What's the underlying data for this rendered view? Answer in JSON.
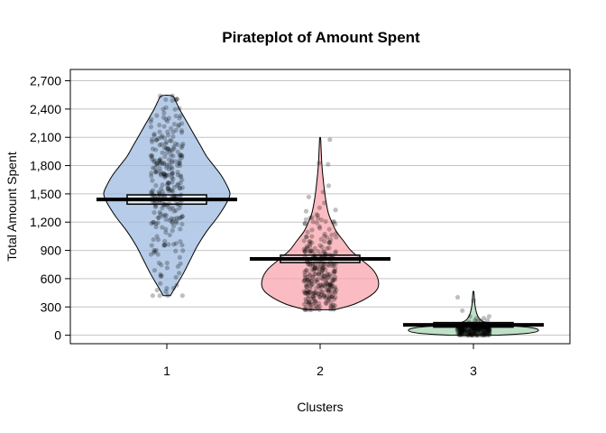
{
  "chart_data": {
    "type": "pirateplot",
    "title": "Pirateplot of Amount Spent",
    "xlabel": "Clusters",
    "ylabel": "Total Amount Spent",
    "ylim": [
      -90,
      2820
    ],
    "yticks": [
      0,
      300,
      600,
      900,
      1200,
      1500,
      1800,
      2100,
      2400,
      2700
    ],
    "ytick_labels": [
      "0",
      "300",
      "600",
      "900",
      "1,200",
      "1,500",
      "1,800",
      "2,100",
      "2,400",
      "2,700"
    ],
    "grid": true,
    "categories": [
      "1",
      "2",
      "3"
    ],
    "groups": [
      {
        "category": "1",
        "color": "#9dbbe0",
        "mean": 1440,
        "inference_band": [
          1410,
          1470
        ],
        "range": [
          420,
          2540
        ],
        "density": [
          [
            420,
            4
          ],
          [
            520,
            10
          ],
          [
            650,
            18
          ],
          [
            800,
            26
          ],
          [
            950,
            34
          ],
          [
            1100,
            44
          ],
          [
            1250,
            56
          ],
          [
            1400,
            66
          ],
          [
            1500,
            70
          ],
          [
            1600,
            66
          ],
          [
            1700,
            60
          ],
          [
            1800,
            52
          ],
          [
            1900,
            44
          ],
          [
            2000,
            38
          ],
          [
            2100,
            32
          ],
          [
            2200,
            26
          ],
          [
            2300,
            20
          ],
          [
            2400,
            14
          ],
          [
            2480,
            10
          ],
          [
            2540,
            6
          ]
        ]
      },
      {
        "category": "2",
        "color": "#f8a6ae",
        "mean": 810,
        "inference_band": [
          790,
          830
        ],
        "range": [
          270,
          2090
        ],
        "density": [
          [
            270,
            16
          ],
          [
            330,
            38
          ],
          [
            420,
            56
          ],
          [
            500,
            64
          ],
          [
            600,
            64
          ],
          [
            700,
            58
          ],
          [
            800,
            46
          ],
          [
            900,
            34
          ],
          [
            1000,
            26
          ],
          [
            1100,
            18
          ],
          [
            1200,
            13
          ],
          [
            1300,
            9
          ],
          [
            1450,
            6
          ],
          [
            1600,
            4
          ],
          [
            1800,
            2
          ],
          [
            2000,
            1
          ],
          [
            2090,
            0.5
          ]
        ]
      },
      {
        "category": "3",
        "color": "#a8d6b4",
        "mean": 110,
        "inference_band": [
          105,
          115
        ],
        "range": [
          0,
          460
        ],
        "density": [
          [
            0,
            26
          ],
          [
            20,
            60
          ],
          [
            50,
            72
          ],
          [
            80,
            64
          ],
          [
            110,
            30
          ],
          [
            140,
            12
          ],
          [
            200,
            5
          ],
          [
            300,
            2
          ],
          [
            400,
            1
          ],
          [
            460,
            0.5
          ]
        ]
      }
    ]
  }
}
